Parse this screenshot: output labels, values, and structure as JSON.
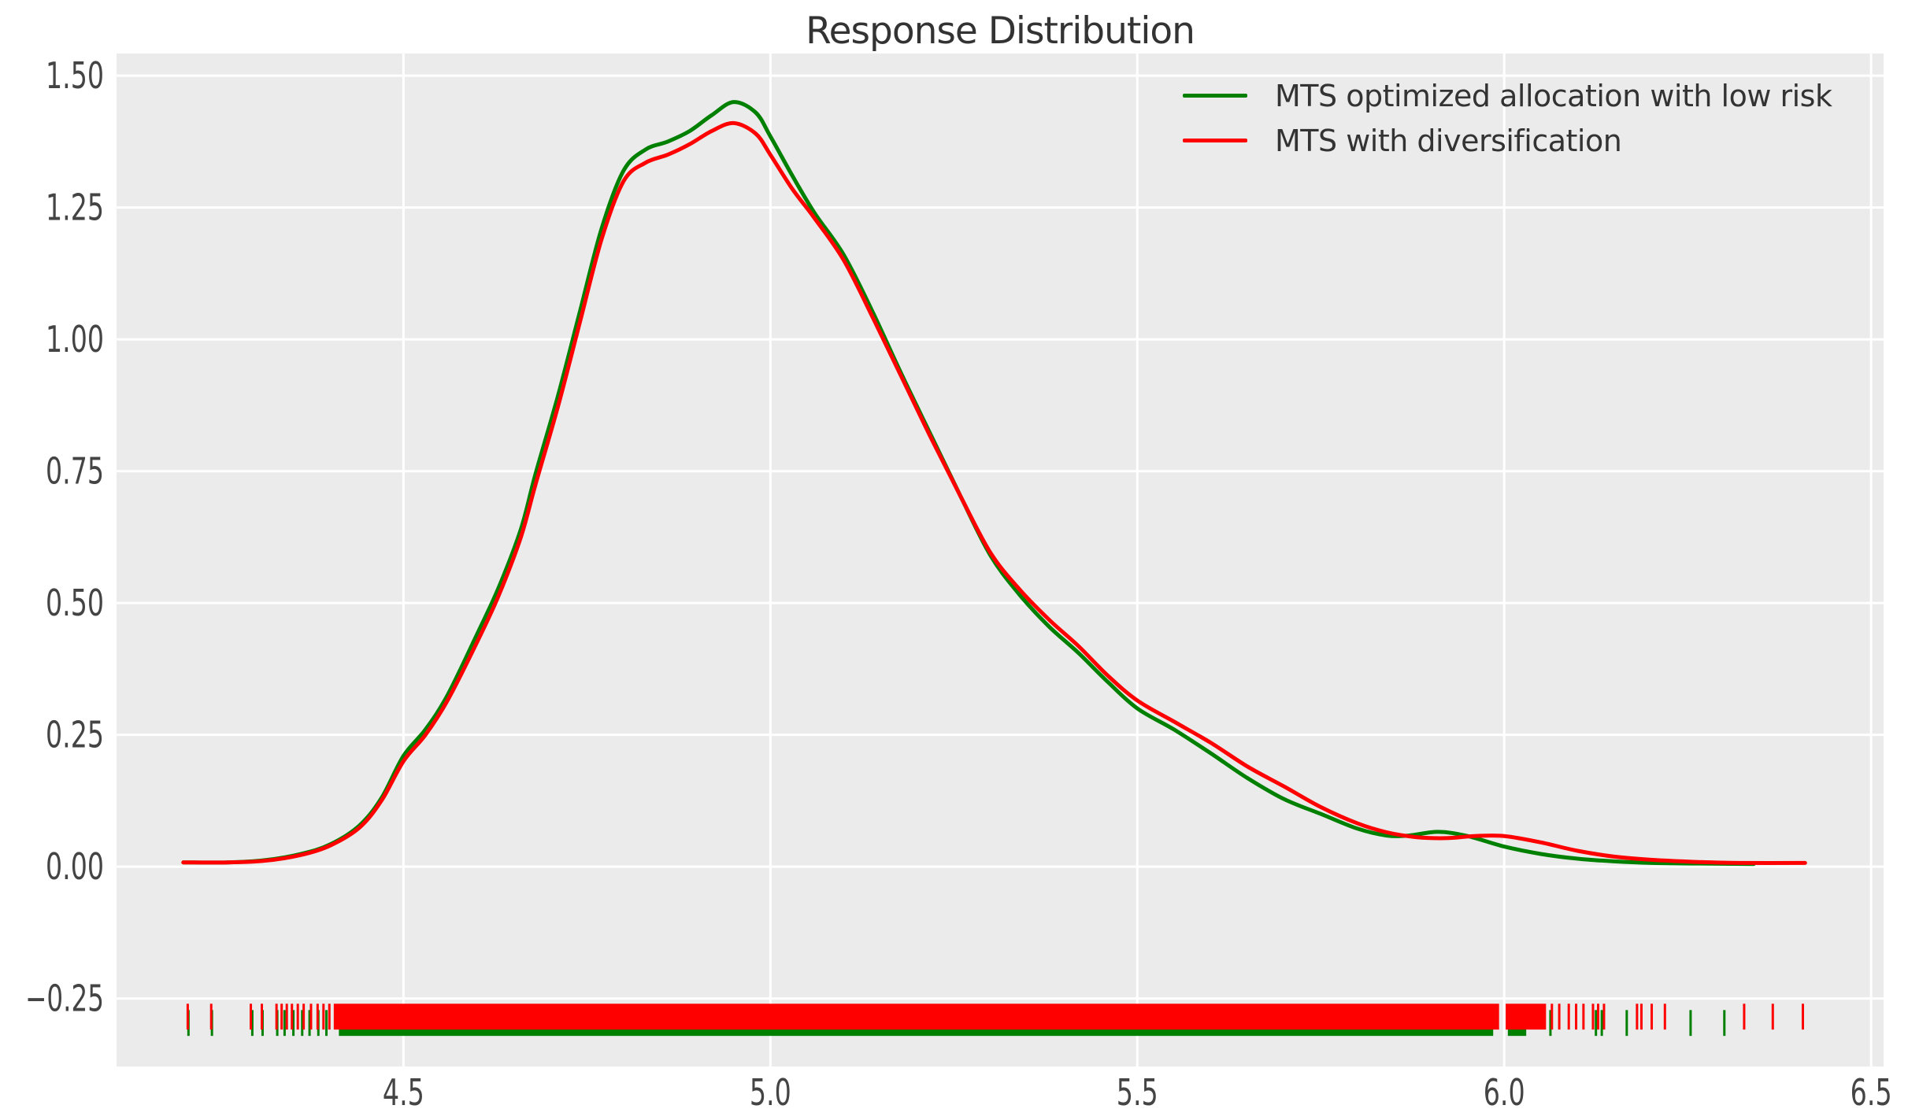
{
  "chart_data": {
    "type": "line",
    "subtype": "kde-density-with-rug",
    "title": "Response Distribution",
    "xlabel": "",
    "ylabel": "",
    "grid": true,
    "background_color": "#ebebeb",
    "grid_color": "#ffffff",
    "tick_label_color": "#444444",
    "x_range": [
      4.109,
      6.517
    ],
    "y_range": [
      -0.379,
      1.542
    ],
    "x_ticks": {
      "values": [
        4.5,
        5.0,
        5.5,
        6.0,
        6.5
      ],
      "labels": [
        "4.5",
        "5.0",
        "5.5",
        "6.0",
        "6.5"
      ]
    },
    "y_ticks": {
      "values": [
        -0.25,
        0.0,
        0.25,
        0.5,
        0.75,
        1.0,
        1.25,
        1.5
      ],
      "labels": [
        "−0.25",
        "0.00",
        "0.25",
        "0.50",
        "0.75",
        "1.00",
        "1.25",
        "1.50"
      ]
    },
    "legend": {
      "position": "upper-right",
      "items": [
        {
          "label": "MTS optimized allocation with low risk",
          "color": "#008000"
        },
        {
          "label": "MTS with diversification",
          "color": "#ff0000"
        }
      ]
    },
    "series": [
      {
        "name": "MTS optimized allocation with low risk",
        "color": "#008000",
        "line_width": 5,
        "points": [
          [
            4.2,
            0.008
          ],
          [
            4.26,
            0.008
          ],
          [
            4.31,
            0.012
          ],
          [
            4.36,
            0.024
          ],
          [
            4.4,
            0.042
          ],
          [
            4.44,
            0.078
          ],
          [
            4.47,
            0.13
          ],
          [
            4.5,
            0.21
          ],
          [
            4.53,
            0.26
          ],
          [
            4.56,
            0.325
          ],
          [
            4.6,
            0.44
          ],
          [
            4.63,
            0.53
          ],
          [
            4.66,
            0.64
          ],
          [
            4.68,
            0.745
          ],
          [
            4.71,
            0.89
          ],
          [
            4.74,
            1.05
          ],
          [
            4.77,
            1.21
          ],
          [
            4.8,
            1.32
          ],
          [
            4.83,
            1.36
          ],
          [
            4.86,
            1.375
          ],
          [
            4.89,
            1.395
          ],
          [
            4.92,
            1.425
          ],
          [
            4.95,
            1.45
          ],
          [
            4.98,
            1.43
          ],
          [
            5.0,
            1.385
          ],
          [
            5.03,
            1.31
          ],
          [
            5.06,
            1.24
          ],
          [
            5.1,
            1.16
          ],
          [
            5.14,
            1.05
          ],
          [
            5.18,
            0.93
          ],
          [
            5.22,
            0.815
          ],
          [
            5.26,
            0.7
          ],
          [
            5.3,
            0.59
          ],
          [
            5.34,
            0.515
          ],
          [
            5.38,
            0.455
          ],
          [
            5.42,
            0.405
          ],
          [
            5.46,
            0.35
          ],
          [
            5.5,
            0.3
          ],
          [
            5.55,
            0.26
          ],
          [
            5.6,
            0.215
          ],
          [
            5.65,
            0.168
          ],
          [
            5.7,
            0.128
          ],
          [
            5.75,
            0.1
          ],
          [
            5.8,
            0.072
          ],
          [
            5.84,
            0.059
          ],
          [
            5.87,
            0.059
          ],
          [
            5.91,
            0.066
          ],
          [
            5.95,
            0.058
          ],
          [
            6.0,
            0.038
          ],
          [
            6.05,
            0.024
          ],
          [
            6.1,
            0.015
          ],
          [
            6.15,
            0.01
          ],
          [
            6.2,
            0.007
          ],
          [
            6.26,
            0.006
          ],
          [
            6.34,
            0.005
          ]
        ]
      },
      {
        "name": "MTS with diversification",
        "color": "#ff0000",
        "line_width": 5,
        "points": [
          [
            4.2,
            0.008
          ],
          [
            4.26,
            0.008
          ],
          [
            4.31,
            0.011
          ],
          [
            4.36,
            0.022
          ],
          [
            4.4,
            0.04
          ],
          [
            4.44,
            0.074
          ],
          [
            4.47,
            0.125
          ],
          [
            4.5,
            0.2
          ],
          [
            4.53,
            0.25
          ],
          [
            4.56,
            0.315
          ],
          [
            4.6,
            0.425
          ],
          [
            4.63,
            0.515
          ],
          [
            4.66,
            0.625
          ],
          [
            4.68,
            0.725
          ],
          [
            4.71,
            0.87
          ],
          [
            4.74,
            1.03
          ],
          [
            4.77,
            1.19
          ],
          [
            4.8,
            1.3
          ],
          [
            4.83,
            1.335
          ],
          [
            4.86,
            1.35
          ],
          [
            4.89,
            1.37
          ],
          [
            4.92,
            1.395
          ],
          [
            4.95,
            1.41
          ],
          [
            4.98,
            1.39
          ],
          [
            5.0,
            1.35
          ],
          [
            5.03,
            1.285
          ],
          [
            5.06,
            1.23
          ],
          [
            5.1,
            1.15
          ],
          [
            5.14,
            1.04
          ],
          [
            5.18,
            0.925
          ],
          [
            5.22,
            0.81
          ],
          [
            5.26,
            0.7
          ],
          [
            5.3,
            0.595
          ],
          [
            5.34,
            0.525
          ],
          [
            5.38,
            0.468
          ],
          [
            5.42,
            0.418
          ],
          [
            5.46,
            0.362
          ],
          [
            5.5,
            0.315
          ],
          [
            5.55,
            0.275
          ],
          [
            5.6,
            0.235
          ],
          [
            5.65,
            0.19
          ],
          [
            5.7,
            0.152
          ],
          [
            5.75,
            0.113
          ],
          [
            5.8,
            0.082
          ],
          [
            5.84,
            0.065
          ],
          [
            5.88,
            0.056
          ],
          [
            5.92,
            0.054
          ],
          [
            5.96,
            0.058
          ],
          [
            6.0,
            0.058
          ],
          [
            6.05,
            0.046
          ],
          [
            6.1,
            0.03
          ],
          [
            6.15,
            0.019
          ],
          [
            6.2,
            0.013
          ],
          [
            6.26,
            0.009
          ],
          [
            6.32,
            0.007
          ],
          [
            6.41,
            0.007
          ]
        ]
      }
    ],
    "rug": {
      "tick_width": 3,
      "green": {
        "color": "#008000",
        "band_top": -0.272,
        "band_bottom": -0.321,
        "segments": [
          [
            4.412,
            5.985
          ],
          [
            6.005,
            6.03
          ]
        ],
        "ticks": [
          4.207,
          4.239,
          4.294,
          4.308,
          4.328,
          4.338,
          4.35,
          4.362,
          4.372,
          4.384,
          4.395,
          6.063,
          6.125,
          6.133,
          6.167,
          6.254,
          6.3
        ]
      },
      "red": {
        "color": "#ff0000",
        "band_top": -0.26,
        "band_bottom": -0.309,
        "segments": [
          [
            4.405,
            5.993
          ],
          [
            6.002,
            6.057
          ]
        ],
        "ticks": [
          4.206,
          4.238,
          4.292,
          4.307,
          4.327,
          4.334,
          4.341,
          4.348,
          4.356,
          4.364,
          4.374,
          4.383,
          4.391,
          4.399,
          6.065,
          6.075,
          6.088,
          6.098,
          6.108,
          6.121,
          6.128,
          6.136,
          6.181,
          6.187,
          6.201,
          6.219,
          6.327,
          6.366,
          6.407
        ]
      }
    }
  }
}
